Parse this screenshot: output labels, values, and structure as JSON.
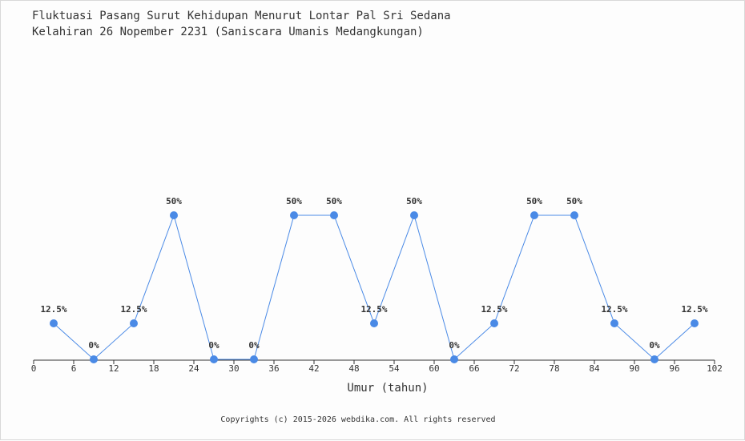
{
  "title_line1": "Fluktuasi Pasang Surut Kehidupan Menurut Lontar Pal Sri Sedana",
  "title_line2": "Kelahiran 26 Nopember 2231 (Saniscara Umanis Medangkungan)",
  "footer": "Copyrights (c) 2015-2026 webdika.com. All rights reserved",
  "chart_data": {
    "type": "line",
    "xlabel": "Umur (tahun)",
    "ylabel": "",
    "xlim": [
      0,
      102
    ],
    "ylim": [
      0,
      100
    ],
    "xticks": [
      0,
      6,
      12,
      18,
      24,
      30,
      36,
      42,
      48,
      54,
      60,
      66,
      72,
      78,
      84,
      90,
      96,
      102
    ],
    "grid": false,
    "series": [
      {
        "x": [
          3,
          9,
          15,
          21,
          27,
          33,
          39,
          45,
          51,
          57,
          63,
          69,
          75,
          81,
          87,
          93,
          99
        ],
        "values": [
          12.5,
          0,
          12.5,
          50,
          0,
          0,
          50,
          50,
          12.5,
          50,
          0,
          12.5,
          50,
          50,
          12.5,
          0,
          12.5
        ],
        "labels": [
          "12.5%",
          "0%",
          "12.5%",
          "50%",
          "0%",
          "0%",
          "50%",
          "50%",
          "12.5%",
          "50%",
          "0%",
          "12.5%",
          "50%",
          "50%",
          "12.5%",
          "0%",
          "12.5%"
        ],
        "color": "#4a8ae6"
      }
    ]
  }
}
